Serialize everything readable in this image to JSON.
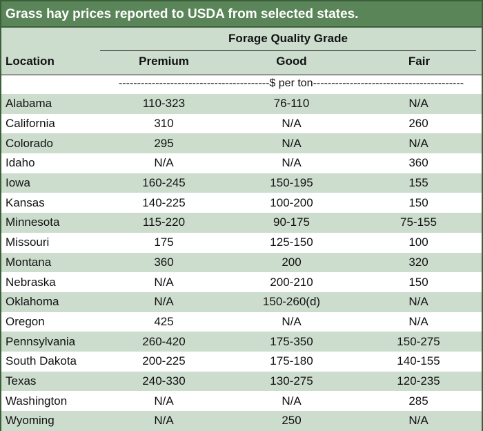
{
  "title": "Grass hay prices reported to USDA from selected states.",
  "group_header": "Forage Quality Grade",
  "columns": {
    "location": "Location",
    "premium": "Premium",
    "good": "Good",
    "fair": "Fair"
  },
  "units": "-----------------------------------------$ per ton-----------------------------------------",
  "rows": [
    {
      "location": "Alabama",
      "premium": "110-323",
      "good": "76-110",
      "fair": "N/A"
    },
    {
      "location": "California",
      "premium": "310",
      "good": "N/A",
      "fair": "260"
    },
    {
      "location": "Colorado",
      "premium": "295",
      "good": "N/A",
      "fair": "N/A"
    },
    {
      "location": "Idaho",
      "premium": "N/A",
      "good": "N/A",
      "fair": "360"
    },
    {
      "location": "Iowa",
      "premium": "160-245",
      "good": "150-195",
      "fair": "155"
    },
    {
      "location": "Kansas",
      "premium": "140-225",
      "good": "100-200",
      "fair": "150"
    },
    {
      "location": "Minnesota",
      "premium": "115-220",
      "good": "90-175",
      "fair": "75-155"
    },
    {
      "location": "Missouri",
      "premium": "175",
      "good": "125-150",
      "fair": "100"
    },
    {
      "location": "Montana",
      "premium": "360",
      "good": "200",
      "fair": "320"
    },
    {
      "location": "Nebraska",
      "premium": "N/A",
      "good": "200-210",
      "fair": "150"
    },
    {
      "location": "Oklahoma",
      "premium": "N/A",
      "good": "150-260(d)",
      "fair": "N/A"
    },
    {
      "location": "Oregon",
      "premium": "425",
      "good": "N/A",
      "fair": "N/A"
    },
    {
      "location": "Pennsylvania",
      "premium": "260-420",
      "good": "175-350",
      "fair": "150-275"
    },
    {
      "location": "South Dakota",
      "premium": "200-225",
      "good": "175-180",
      "fair": "140-155"
    },
    {
      "location": "Texas",
      "premium": "240-330",
      "good": "130-275",
      "fair": "120-235"
    },
    {
      "location": "Washington",
      "premium": "N/A",
      "good": "N/A",
      "fair": "285"
    },
    {
      "location": "Wyoming",
      "premium": "N/A",
      "good": "250",
      "fair": "N/A"
    }
  ],
  "colors": {
    "title_bg": "#5a8558",
    "shade": "#ccdccd",
    "border": "#3b5e3b"
  }
}
